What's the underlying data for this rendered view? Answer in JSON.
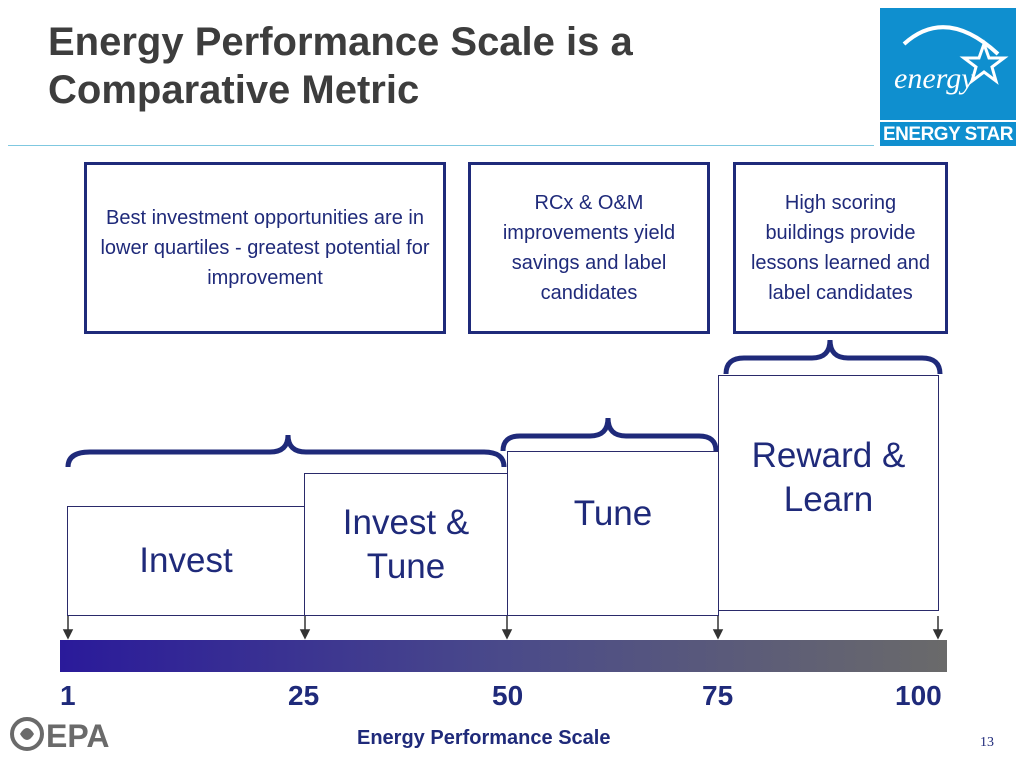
{
  "title": "Energy Performance Scale is a Comparative Metric",
  "logo": {
    "script": "energy",
    "text": "ENERGY STAR"
  },
  "notes": [
    {
      "text": "Best investment opportunities are in lower quartiles - greatest potential for improvement"
    },
    {
      "text": "RCx & O&M improvements yield savings and label candidates"
    },
    {
      "text": "High scoring buildings provide lessons learned and label candidates"
    }
  ],
  "tiers": [
    {
      "label": "Invest"
    },
    {
      "label": "Invest & Tune"
    },
    {
      "label": "Tune"
    },
    {
      "label": "Reward & Learn"
    }
  ],
  "scale": {
    "ticks": [
      "1",
      "25",
      "50",
      "75",
      "100"
    ],
    "axis_label": "Energy Performance Scale"
  },
  "footer": {
    "logo_text": "EPA",
    "page_number": "13"
  },
  "colors": {
    "navy": "#1f2a7a",
    "logo_blue": "#0f8fcf",
    "bar_start": "#2a1a9a",
    "bar_end": "#6a6a6a"
  }
}
